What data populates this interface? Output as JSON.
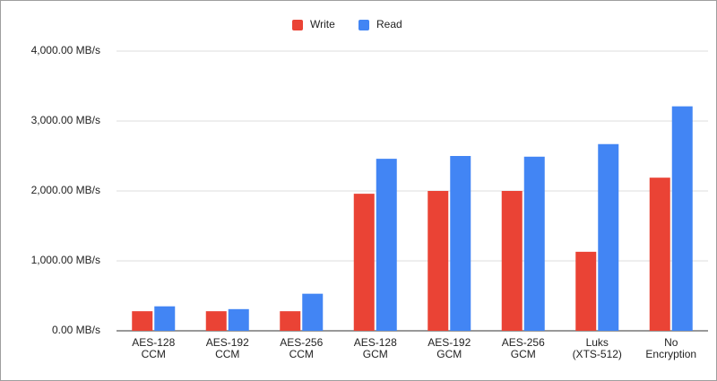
{
  "chart_data": {
    "type": "bar",
    "categories": [
      [
        "AES-128",
        "CCM"
      ],
      [
        "AES-192",
        "CCM"
      ],
      [
        "AES-256",
        "CCM"
      ],
      [
        "AES-128",
        "GCM"
      ],
      [
        "AES-192",
        "GCM"
      ],
      [
        "AES-256",
        "GCM"
      ],
      [
        "Luks",
        "(XTS-512)"
      ],
      [
        "No",
        "Encryption"
      ]
    ],
    "series": [
      {
        "name": "Write",
        "color": "#ea4335",
        "values": [
          280,
          280,
          280,
          1960,
          2000,
          2000,
          1130,
          2190
        ]
      },
      {
        "name": "Read",
        "color": "#4285f4",
        "values": [
          350,
          310,
          530,
          2460,
          2500,
          2490,
          2670,
          3210
        ]
      }
    ],
    "ylim": [
      0,
      4000
    ],
    "yticks": [
      {
        "value": 0,
        "label": "0.00 MB/s"
      },
      {
        "value": 1000,
        "label": "1,000.00 MB/s"
      },
      {
        "value": 2000,
        "label": "2,000.00 MB/s"
      },
      {
        "value": 3000,
        "label": "3,000.00 MB/s"
      },
      {
        "value": 4000,
        "label": "4,000.00 MB/s"
      }
    ],
    "grid": true,
    "legend": "top"
  }
}
